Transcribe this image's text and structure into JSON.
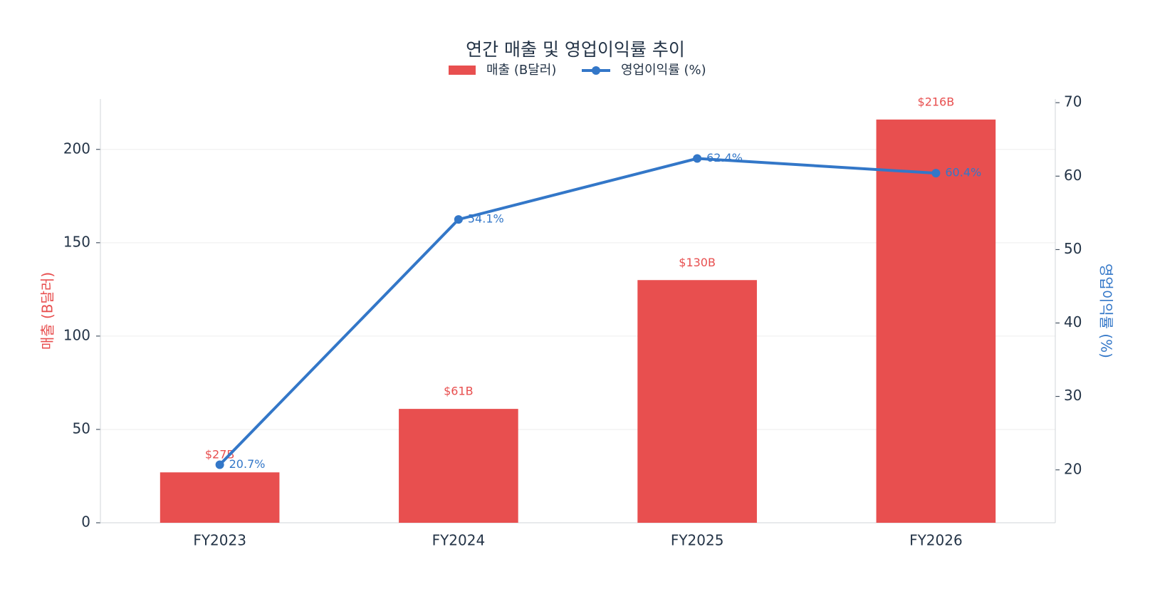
{
  "chart_data": {
    "type": "bar",
    "title": "연간 매출 및 영업이익률 추이",
    "categories": [
      "FY2023",
      "FY2024",
      "FY2025",
      "FY2026"
    ],
    "series": [
      {
        "name": "매출 (B달러)",
        "type": "bar",
        "color": "#e84f4f",
        "values": [
          27,
          61,
          130,
          216
        ],
        "value_labels": [
          "$27B",
          "$61B",
          "$130B",
          "$216B"
        ]
      },
      {
        "name": "영업이익률 (%)",
        "type": "line",
        "axis": "y2",
        "color": "#3377c8",
        "values": [
          20.7,
          54.1,
          62.4,
          60.4
        ],
        "value_labels": [
          "20.7%",
          "54.1%",
          "62.4%",
          "60.4%"
        ]
      }
    ],
    "ylabel": "매출 (B달러)",
    "y2label": "영업이익률 (%)",
    "ylim": [
      0,
      227
    ],
    "yticks": [
      0,
      50,
      100,
      150,
      200
    ],
    "y2lim": [
      12.8,
      70.5
    ],
    "y2ticks": [
      20,
      30,
      40,
      50,
      60,
      70
    ],
    "grid": true,
    "legend": "top"
  }
}
